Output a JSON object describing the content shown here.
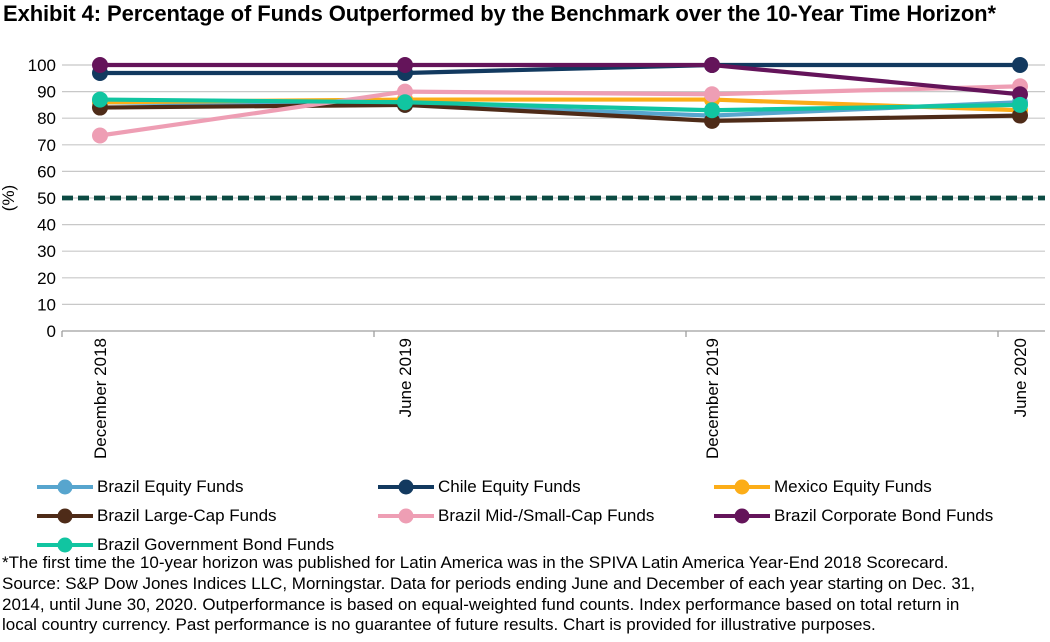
{
  "chart_data": {
    "type": "line",
    "title": "Exhibit 4: Percentage of Funds Outperformed by the Benchmark over the 10-Year Time Horizon*",
    "categories": [
      "December 2018",
      "June 2019",
      "December 2019",
      "June 2020"
    ],
    "series": [
      {
        "name": "Brazil Equity Funds",
        "color": "#57A5CE",
        "values": [
          86,
          85,
          81,
          86
        ]
      },
      {
        "name": "Chile Equity Funds",
        "color": "#12395F",
        "values": [
          97,
          97,
          100,
          100
        ]
      },
      {
        "name": "Mexico Equity Funds",
        "color": "#FCAD18",
        "values": [
          86,
          87,
          87,
          83
        ]
      },
      {
        "name": "Brazil Large-Cap Funds",
        "color": "#4E2B18",
        "values": [
          84,
          85,
          79,
          81
        ]
      },
      {
        "name": "Brazil Mid-/Small-Cap Funds",
        "color": "#EE9EB4",
        "values": [
          73.5,
          90,
          89,
          92
        ]
      },
      {
        "name": "Brazil Corporate Bond Funds",
        "color": "#64145A",
        "values": [
          100,
          100,
          100,
          89
        ]
      },
      {
        "name": "Brazil Government Bond Funds",
        "color": "#11C5A1",
        "values": [
          87,
          86,
          83,
          85
        ]
      }
    ],
    "xlabel": "",
    "ylabel": "(%)",
    "ylim": [
      0,
      100
    ],
    "ytick_step": 10,
    "grid": true,
    "legend_position": "bottom",
    "benchmark_line": {
      "value": 50,
      "style": "dashed",
      "color": "#0C4B43"
    }
  },
  "footnote_lines": [
    "*The first time the 10-year horizon was published for Latin America was in the SPIVA Latin America Year-End 2018 Scorecard.",
    "Source: S&P Dow Jones Indices LLC, Morningstar. Data for periods ending June and December of each year starting on Dec. 31,",
    "2014, until June 30, 2020. Outperformance is based on equal-weighted fund counts. Index performance based on total return in",
    "local country currency. Past performance is no guarantee of future results. Chart is provided for illustrative purposes."
  ]
}
